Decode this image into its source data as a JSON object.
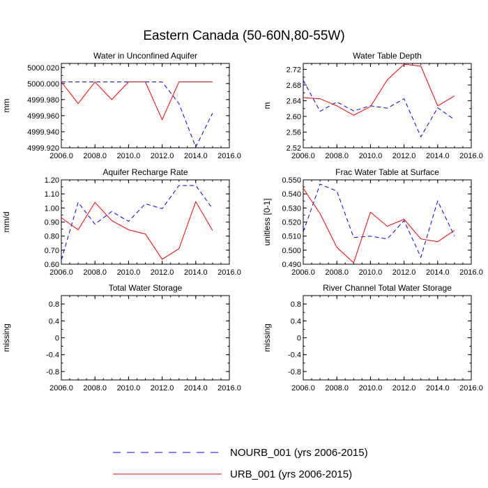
{
  "figure": {
    "title": "Eastern Canada (50-60N,80-55W)"
  },
  "legend": [
    {
      "label": "NOURB_001 (yrs 2006-2015)",
      "color": "#0000ff",
      "dash": true
    },
    {
      "label": "URB_001 (yrs 2006-2015)",
      "color": "#ff0000",
      "dash": false
    }
  ],
  "chart_data": [
    {
      "type": "line",
      "title": "Water in Unconfined Aquifer",
      "ylabel": "mm",
      "xlim": [
        2006,
        2016
      ],
      "ylim": [
        4999.92,
        5000.025
      ],
      "xticks": [
        2006,
        2008,
        2010,
        2012,
        2014,
        2016
      ],
      "xtick_labels": [
        "2006.0",
        "2008.0",
        "2010.0",
        "2012.0",
        "2014.0",
        "2016.0"
      ],
      "yticks": [
        4999.92,
        4999.94,
        4999.96,
        4999.98,
        5000.0,
        5000.02
      ],
      "ytick_labels": [
        "4999.920",
        "4999.940",
        "4999.960",
        "4999.980",
        "5000.000",
        "5000.020"
      ],
      "x": [
        2006,
        2007,
        2008,
        2009,
        2010,
        2011,
        2012,
        2013,
        2014,
        2015
      ],
      "series": [
        {
          "name": "NOURB_001",
          "color": "#0000ff",
          "dash": true,
          "values": [
            5000.002,
            5000.002,
            5000.002,
            5000.002,
            5000.002,
            5000.002,
            5000.002,
            4999.975,
            4999.921,
            4999.963
          ]
        },
        {
          "name": "URB_001",
          "color": "#ff0000",
          "dash": false,
          "values": [
            5000.002,
            4999.975,
            5000.002,
            4999.98,
            5000.002,
            5000.002,
            4999.955,
            5000.002,
            5000.002,
            5000.002
          ]
        }
      ]
    },
    {
      "type": "line",
      "title": "Water Table Depth",
      "ylabel": "m",
      "xlim": [
        2006,
        2016
      ],
      "ylim": [
        2.52,
        2.735
      ],
      "xticks": [
        2006,
        2008,
        2010,
        2012,
        2014,
        2016
      ],
      "xtick_labels": [
        "2006.0",
        "2008.0",
        "2010.0",
        "2012.0",
        "2014.0",
        "2016.0"
      ],
      "yticks": [
        2.52,
        2.56,
        2.6,
        2.64,
        2.68,
        2.72
      ],
      "ytick_labels": [
        "2.52",
        "2.56",
        "2.60",
        "2.64",
        "2.68",
        "2.72"
      ],
      "x": [
        2006,
        2007,
        2008,
        2009,
        2010,
        2011,
        2012,
        2013,
        2014,
        2015
      ],
      "series": [
        {
          "name": "NOURB_001",
          "color": "#0000ff",
          "dash": true,
          "values": [
            2.692,
            2.613,
            2.637,
            2.614,
            2.627,
            2.621,
            2.645,
            2.548,
            2.622,
            2.592
          ]
        },
        {
          "name": "URB_001",
          "color": "#ff0000",
          "dash": false,
          "values": [
            2.648,
            2.645,
            2.627,
            2.603,
            2.625,
            2.693,
            2.733,
            2.728,
            2.627,
            2.652
          ]
        }
      ]
    },
    {
      "type": "line",
      "title": "Aquifer Recharge Rate",
      "ylabel": "mm/d",
      "xlim": [
        2006,
        2016
      ],
      "ylim": [
        0.6,
        1.2
      ],
      "xticks": [
        2006,
        2008,
        2010,
        2012,
        2014,
        2016
      ],
      "xtick_labels": [
        "2006.0",
        "2008.0",
        "2010.0",
        "2012.0",
        "2014.0",
        "2016.0"
      ],
      "yticks": [
        0.6,
        0.7,
        0.8,
        0.9,
        1.0,
        1.1,
        1.2
      ],
      "ytick_labels": [
        "0.60",
        "0.70",
        "0.80",
        "0.90",
        "1.00",
        "1.10",
        "1.20"
      ],
      "x": [
        2006,
        2007,
        2008,
        2009,
        2010,
        2011,
        2012,
        2013,
        2014,
        2015
      ],
      "series": [
        {
          "name": "NOURB_001",
          "color": "#0000ff",
          "dash": true,
          "values": [
            0.63,
            1.04,
            0.885,
            0.975,
            0.905,
            1.03,
            0.995,
            1.16,
            1.16,
            0.995
          ]
        },
        {
          "name": "URB_001",
          "color": "#ff0000",
          "dash": false,
          "values": [
            0.93,
            0.845,
            1.04,
            0.91,
            0.845,
            0.815,
            0.635,
            0.71,
            1.045,
            0.84
          ]
        }
      ]
    },
    {
      "type": "line",
      "title": "Frac Water Table at Surface",
      "ylabel": "unitless [0-1]",
      "xlim": [
        2006,
        2016
      ],
      "ylim": [
        0.49,
        0.55
      ],
      "xticks": [
        2006,
        2008,
        2010,
        2012,
        2014,
        2016
      ],
      "xtick_labels": [
        "2006.0",
        "2008.0",
        "2010.0",
        "2012.0",
        "2014.0",
        "2016.0"
      ],
      "yticks": [
        0.49,
        0.5,
        0.51,
        0.52,
        0.53,
        0.54,
        0.55
      ],
      "ytick_labels": [
        "0.490",
        "0.500",
        "0.510",
        "0.520",
        "0.530",
        "0.540",
        "0.550"
      ],
      "x": [
        2006,
        2007,
        2008,
        2009,
        2010,
        2011,
        2012,
        2013,
        2014,
        2015
      ],
      "series": [
        {
          "name": "NOURB_001",
          "color": "#0000ff",
          "dash": true,
          "values": [
            0.513,
            0.547,
            0.542,
            0.509,
            0.51,
            0.508,
            0.521,
            0.495,
            0.535,
            0.51
          ]
        },
        {
          "name": "URB_001",
          "color": "#ff0000",
          "dash": false,
          "values": [
            0.544,
            0.526,
            0.502,
            0.491,
            0.527,
            0.517,
            0.522,
            0.508,
            0.506,
            0.514
          ]
        }
      ]
    },
    {
      "type": "line",
      "title": "Total Water Storage",
      "ylabel": "missing",
      "xlim": [
        2006,
        2016
      ],
      "ylim": [
        -1,
        1
      ],
      "xticks": [
        2006,
        2008,
        2010,
        2012,
        2014,
        2016
      ],
      "xtick_labels": [
        "2006.0",
        "2008.0",
        "2010.0",
        "2012.0",
        "2014.0",
        "2016.0"
      ],
      "yticks": [
        -0.8,
        -0.4,
        0,
        0.4,
        0.8
      ],
      "ytick_labels": [
        "-0.8",
        "-0.4",
        "0",
        "0.4",
        "0.8"
      ],
      "x": [],
      "series": []
    },
    {
      "type": "line",
      "title": "River Channel Total Water Storage",
      "ylabel": "missing",
      "xlim": [
        2006,
        2016
      ],
      "ylim": [
        -1,
        1
      ],
      "xticks": [
        2006,
        2008,
        2010,
        2012,
        2014,
        2016
      ],
      "xtick_labels": [
        "2006.0",
        "2008.0",
        "2010.0",
        "2012.0",
        "2014.0",
        "2016.0"
      ],
      "yticks": [
        -0.8,
        -0.4,
        0,
        0.4,
        0.8
      ],
      "ytick_labels": [
        "-0.8",
        "-0.4",
        "0",
        "0.4",
        "0.8"
      ],
      "x": [],
      "series": []
    }
  ]
}
